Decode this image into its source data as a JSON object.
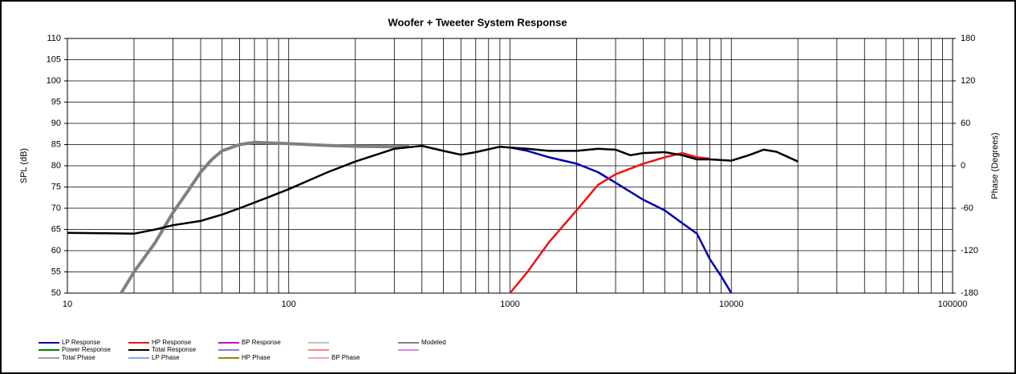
{
  "chart_data": {
    "type": "line",
    "title": "Woofer + Tweeter    System Response",
    "y_label": "SPL (dB)",
    "y2_label": "Phase (Degrees)",
    "log_x": true,
    "grid": true,
    "xlim": [
      10,
      100000
    ],
    "xticks": [
      10,
      100,
      1000,
      10000,
      100000
    ],
    "ylim": [
      50,
      110
    ],
    "yticks": [
      50,
      55,
      60,
      65,
      70,
      75,
      80,
      85,
      90,
      95,
      100,
      105,
      110
    ],
    "y2lim": [
      -180,
      180
    ],
    "y2ticks": [
      -180,
      -120,
      -60,
      0,
      60,
      120,
      180
    ],
    "series": [
      {
        "name": "LP Response",
        "color": "#0000b0",
        "x": [
          1000,
          1200,
          1500,
          2000,
          2500,
          3000,
          4000,
          5000,
          6000,
          7000,
          8000,
          9000,
          10000
        ],
        "values": [
          84.3,
          83.5,
          82,
          80.5,
          78.5,
          76,
          72,
          69.5,
          66.5,
          64,
          58,
          54,
          50
        ]
      },
      {
        "name": "HP Response",
        "color": "#ee1111",
        "x": [
          1000,
          1200,
          1500,
          2000,
          2500,
          3000,
          4000,
          5000,
          6000,
          7000,
          8000
        ],
        "values": [
          50,
          55,
          62,
          69.5,
          75.5,
          78,
          80.5,
          82,
          83,
          82,
          81.7
        ]
      },
      {
        "name": "BP Response",
        "color": "#cc00cc",
        "x": [],
        "values": []
      },
      {
        "name": "Modeled",
        "color": "#808080",
        "x": [
          17.5,
          20,
          25,
          30,
          35,
          40,
          45,
          50,
          60,
          70,
          100,
          150,
          200,
          300,
          350
        ],
        "values": [
          50,
          55,
          62,
          69,
          74,
          78.5,
          81.5,
          83.5,
          85,
          85.5,
          85.2,
          84.8,
          84.6,
          84.5,
          84.6
        ]
      },
      {
        "name": "Power Response",
        "color": "#008000",
        "x": [],
        "values": []
      },
      {
        "name": "Total Response",
        "color": "#000000",
        "x": [
          10,
          15,
          20,
          25,
          30,
          40,
          50,
          60,
          80,
          100,
          150,
          200,
          300,
          400,
          500,
          600,
          700,
          900,
          1000,
          1200,
          1500,
          2000,
          2500,
          3000,
          3500,
          4000,
          5000,
          6000,
          7000,
          8000,
          10000,
          12000,
          14000,
          16000,
          20000
        ],
        "values": [
          64.2,
          64.1,
          64,
          65,
          66,
          67,
          68.5,
          70,
          72.5,
          74.5,
          78.5,
          81,
          84,
          84.7,
          83.5,
          82.6,
          83.2,
          84.5,
          84.3,
          84,
          83.5,
          83.5,
          84,
          83.8,
          82.5,
          83,
          83.2,
          82.5,
          81.5,
          81.5,
          81.2,
          82.5,
          83.8,
          83.3,
          81
        ]
      },
      {
        "name": "Total Phase",
        "color": "#a0a0a0",
        "x": [],
        "values": []
      },
      {
        "name": "LP Phase",
        "color": "#80b0e0",
        "x": [],
        "values": []
      },
      {
        "name": "HP Phase",
        "color": "#a08000",
        "x": [],
        "values": []
      },
      {
        "name": "BP Phase",
        "color": "#f0a0c0",
        "x": [],
        "values": []
      }
    ]
  }
}
